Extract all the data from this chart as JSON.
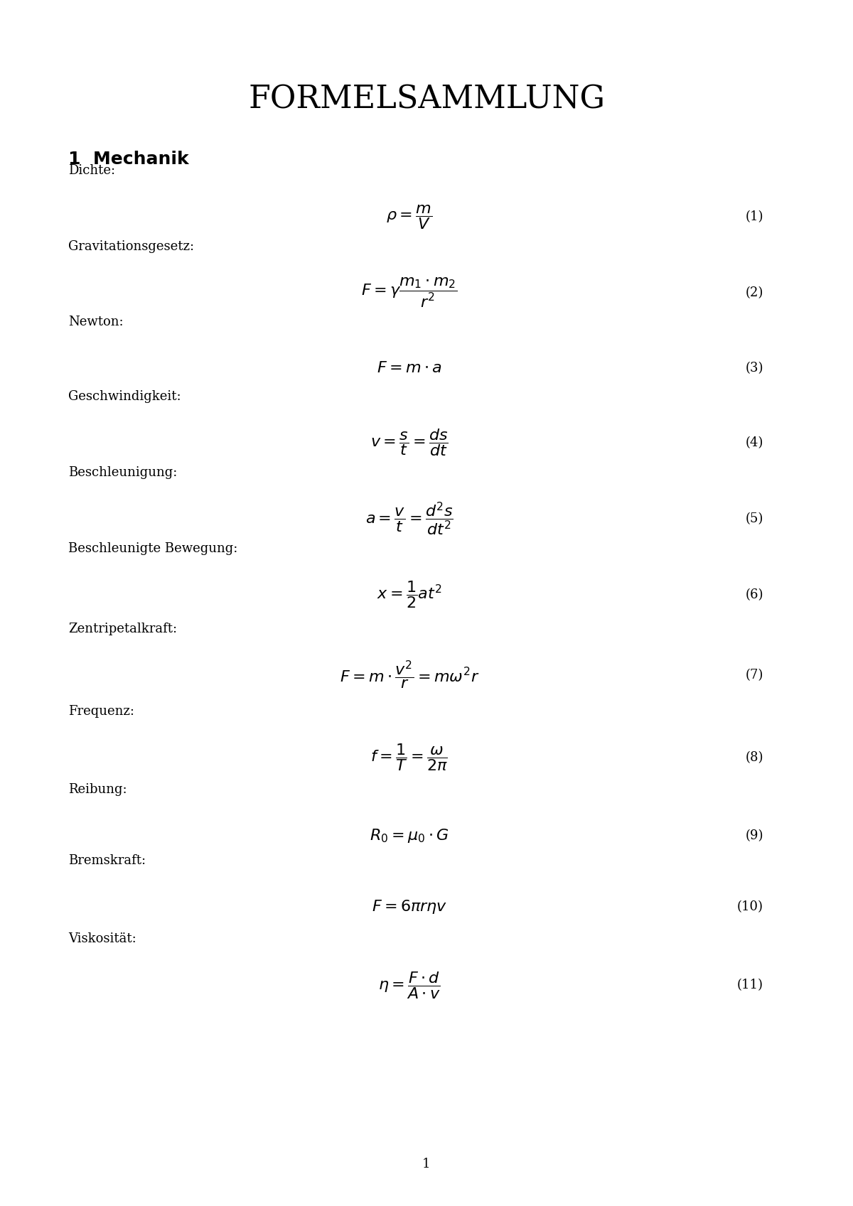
{
  "title": "FORMELSAMMLUNG",
  "section": "1  Mechanik",
  "background_color": "#ffffff",
  "text_color": "#000000",
  "entries": [
    {
      "label": "Dichte:",
      "formula": "$\\rho = \\dfrac{m}{V}$",
      "number": "(1)"
    },
    {
      "label": "Gravitationsgesetz:",
      "formula": "$F = \\gamma\\dfrac{m_1 \\cdot m_2}{r^2}$",
      "number": "(2)"
    },
    {
      "label": "Newton:",
      "formula": "$F = m \\cdot a$",
      "number": "(3)"
    },
    {
      "label": "Geschwindigkeit:",
      "formula": "$v = \\dfrac{s}{t} = \\dfrac{ds}{dt}$",
      "number": "(4)"
    },
    {
      "label": "Beschleunigung:",
      "formula": "$a = \\dfrac{v}{t} = \\dfrac{d^2s}{dt^2}$",
      "number": "(5)"
    },
    {
      "label": "Beschleunigte Bewegung:",
      "formula": "$x = \\dfrac{1}{2}at^2$",
      "number": "(6)"
    },
    {
      "label": "Zentripetalkraft:",
      "formula": "$F = m \\cdot \\dfrac{v^2}{r} = m\\omega^2 r$",
      "number": "(7)"
    },
    {
      "label": "Frequenz:",
      "formula": "$f = \\dfrac{1}{T} = \\dfrac{\\omega}{2\\pi}$",
      "number": "(8)"
    },
    {
      "label": "Reibung:",
      "formula": "$R_0 = \\mu_0 \\cdot G$",
      "number": "(9)"
    },
    {
      "label": "Bremskraft:",
      "formula": "$F = 6\\pi r\\eta v$",
      "number": "(10)"
    },
    {
      "label": "Viskosität:",
      "formula": "$\\eta = \\dfrac{F \\cdot d}{A \\cdot v}$",
      "number": "(11)"
    }
  ],
  "page_number": "1",
  "title_fontsize": 32,
  "section_fontsize": 18,
  "label_fontsize": 13,
  "formula_fontsize": 16,
  "number_fontsize": 13
}
